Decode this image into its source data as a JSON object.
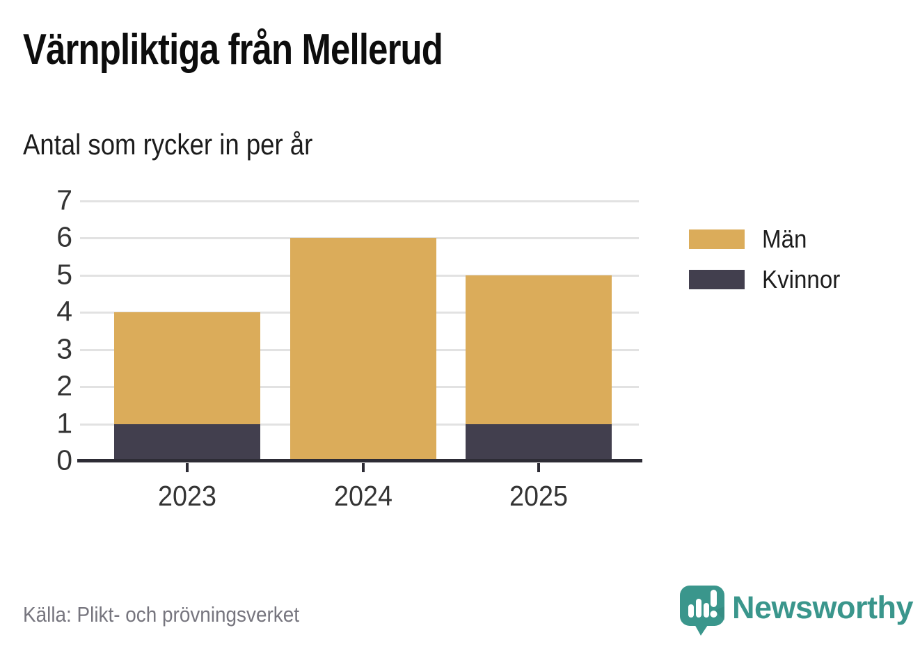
{
  "header": {
    "title": "Värnpliktiga från Mellerud",
    "subtitle": "Antal som rycker in per år"
  },
  "chart_data": {
    "type": "bar",
    "stacked": true,
    "title": "Värnpliktiga från Mellerud",
    "subtitle": "Antal som rycker in per år",
    "categories": [
      "2023",
      "2024",
      "2025"
    ],
    "series": [
      {
        "name": "Män",
        "color": "#dbac5a",
        "values": [
          3,
          6,
          4
        ]
      },
      {
        "name": "Kvinnor",
        "color": "#423f4e",
        "values": [
          1,
          0,
          1
        ]
      }
    ],
    "stack_bottom_to_top": [
      "Kvinnor",
      "Män"
    ],
    "totals": [
      4,
      6,
      5
    ],
    "xlabel": "",
    "ylabel": "",
    "ylim": [
      0,
      7
    ],
    "yticks": [
      0,
      1,
      2,
      3,
      4,
      5,
      6,
      7
    ],
    "grid": true,
    "legend_position": "right"
  },
  "legend": {
    "items": [
      {
        "label": "Män",
        "color": "#dbac5a"
      },
      {
        "label": "Kvinnor",
        "color": "#423f4e"
      }
    ]
  },
  "footer": {
    "source": "Källa: Plikt- och prövningsverket",
    "brand": "Newsworthy"
  },
  "colors": {
    "men": "#dbac5a",
    "women": "#423f4e",
    "axis": "#2d2c35",
    "gridline": "#e2e2e2",
    "tick_label": "#343434",
    "source_text": "#76757e",
    "brand_teal": "#3a968c",
    "background": "#ffffff",
    "title_text": "#0d0d0d"
  }
}
